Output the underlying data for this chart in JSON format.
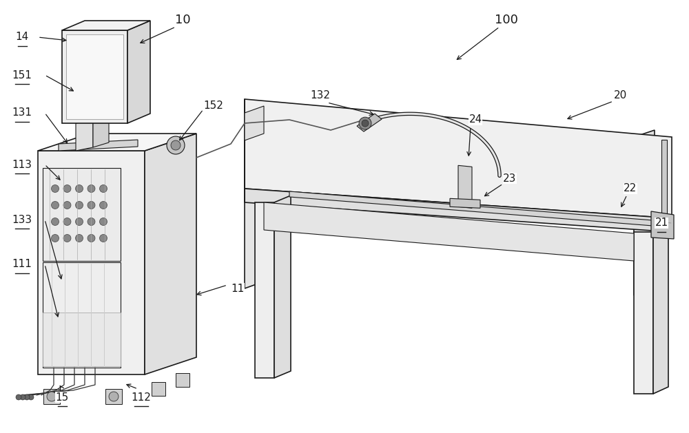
{
  "bg_color": "#ffffff",
  "lc": "#1a1a1a",
  "fc_light": "#f2f2f2",
  "fc_mid": "#e0e0e0",
  "fc_dark": "#c8c8c8",
  "fc_darker": "#b0b0b0"
}
